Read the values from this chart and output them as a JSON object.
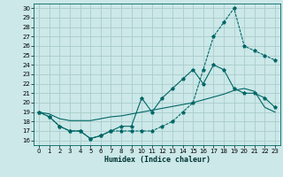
{
  "xlabel": "Humidex (Indice chaleur)",
  "bg_color": "#cce8e8",
  "grid_color": "#aacccc",
  "line_color": "#006666",
  "xlim": [
    -0.5,
    23.5
  ],
  "ylim": [
    15.5,
    30.5
  ],
  "xticks": [
    0,
    1,
    2,
    3,
    4,
    5,
    6,
    7,
    8,
    9,
    10,
    11,
    12,
    13,
    14,
    15,
    16,
    17,
    18,
    19,
    20,
    21,
    22,
    23
  ],
  "yticks": [
    16,
    17,
    18,
    19,
    20,
    21,
    22,
    23,
    24,
    25,
    26,
    27,
    28,
    29,
    30
  ],
  "line1_x": [
    0,
    1,
    2,
    3,
    4,
    5,
    6,
    7,
    8,
    9,
    10,
    11,
    12,
    13,
    14,
    15,
    16,
    17,
    18,
    19,
    20,
    21,
    22,
    23
  ],
  "line1_y": [
    19,
    18.5,
    17.5,
    17.0,
    17.0,
    16.2,
    16.5,
    17.0,
    17.0,
    17.0,
    17.0,
    17.0,
    17.5,
    18.0,
    19.0,
    20.0,
    23.5,
    27.0,
    28.5,
    30.0,
    26.0,
    25.5,
    25.0,
    24.5
  ],
  "line2_x": [
    0,
    1,
    2,
    3,
    4,
    5,
    6,
    7,
    8,
    9,
    10,
    11,
    12,
    13,
    14,
    15,
    16,
    17,
    18,
    19,
    20,
    21,
    22,
    23
  ],
  "line2_y": [
    19,
    18.5,
    17.5,
    17.0,
    17.0,
    16.2,
    16.5,
    17.0,
    17.5,
    17.5,
    20.5,
    19.0,
    20.5,
    21.5,
    22.5,
    23.5,
    22.0,
    24.0,
    23.5,
    21.5,
    21.0,
    21.0,
    20.5,
    19.5
  ],
  "line3_x": [
    0,
    1,
    2,
    3,
    4,
    5,
    6,
    7,
    8,
    9,
    10,
    11,
    12,
    13,
    14,
    15,
    16,
    17,
    18,
    19,
    20,
    21,
    22,
    23
  ],
  "line3_y": [
    19.0,
    18.8,
    18.3,
    18.1,
    18.1,
    18.1,
    18.3,
    18.5,
    18.6,
    18.8,
    19.0,
    19.2,
    19.4,
    19.6,
    19.8,
    20.0,
    20.3,
    20.6,
    20.9,
    21.3,
    21.5,
    21.2,
    19.5,
    19.0
  ]
}
